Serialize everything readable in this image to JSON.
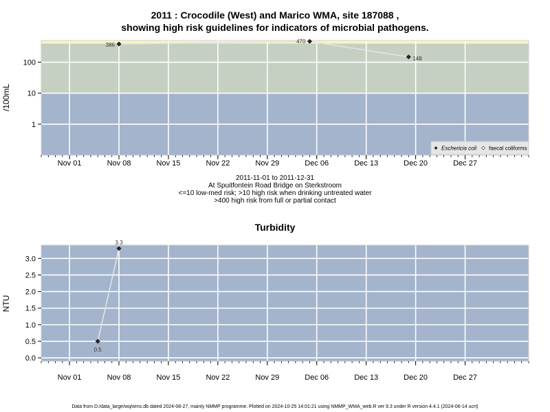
{
  "chart_data": [
    {
      "type": "scatter",
      "title_line1": "2011 : Crocodile (West) and Marico WMA, site 187088 ,",
      "title_line2": "showing high risk guidelines for indicators of microbial pathogens.",
      "ylabel": "/100mL",
      "yscale": "log",
      "ylim": [
        0.1,
        500
      ],
      "yticks": [
        1,
        10,
        100
      ],
      "ytick_labels": [
        "1",
        "10",
        "100"
      ],
      "xlim": [
        "2011-10-28",
        "2012-01-05"
      ],
      "xticks": [
        "2011-11-01",
        "2011-11-08",
        "2011-11-15",
        "2011-11-22",
        "2011-11-29",
        "2011-12-06",
        "2011-12-13",
        "2011-12-20",
        "2011-12-27"
      ],
      "xtick_labels": [
        "Nov 01",
        "Nov 08",
        "Nov 15",
        "Nov 22",
        "Nov 29",
        "Dec 06",
        "Dec 13",
        "Dec 20",
        "Dec 27"
      ],
      "bands": [
        {
          "from": 0.1,
          "to": 10,
          "color": "#a3b4cc"
        },
        {
          "from": 10,
          "to": 400,
          "color": "#c5cfc2"
        },
        {
          "from": 400,
          "to": 500,
          "color": "#f8f6c0"
        }
      ],
      "series": [
        {
          "name": "Eschericia coli",
          "marker": "filled-diamond",
          "points": [
            {
              "x": "2011-11-08",
              "y": 386,
              "label": "386"
            },
            {
              "x": "2011-12-05",
              "y": 470,
              "label": "470"
            },
            {
              "x": "2011-12-19",
              "y": 148,
              "label": "148"
            }
          ]
        },
        {
          "name": "faecal coliforms",
          "marker": "open-diamond",
          "points": []
        }
      ],
      "legend_position": "bottom-right",
      "caption": [
        "2011-11-01 to 2011-12-31",
        "At Spuitfontein Road Bridge on Sterkstroom",
        "<=10 low-med risk; >10 high risk when drinking untreated water",
        ">400 high risk from full or partial contact"
      ]
    },
    {
      "type": "line",
      "title": "Turbidity",
      "ylabel": "NTU",
      "ylim": [
        -0.1,
        3.4
      ],
      "yticks": [
        0,
        0.5,
        1,
        1.5,
        2,
        2.5,
        3
      ],
      "ytick_labels": [
        "0.0",
        "0.5",
        "1.0",
        "1.5",
        "2.0",
        "2.5",
        "3.0"
      ],
      "xlim": [
        "2011-10-28",
        "2012-01-05"
      ],
      "xticks": [
        "2011-11-01",
        "2011-11-08",
        "2011-11-15",
        "2011-11-22",
        "2011-11-29",
        "2011-12-06",
        "2011-12-13",
        "2011-12-20",
        "2011-12-27"
      ],
      "xtick_labels": [
        "Nov 01",
        "Nov 08",
        "Nov 15",
        "Nov 22",
        "Nov 29",
        "Dec 06",
        "Dec 13",
        "Dec 20",
        "Dec 27"
      ],
      "background": "#a3b4cc",
      "series": [
        {
          "points": [
            {
              "x": "2011-11-05",
              "y": 0.5,
              "label": "0.5"
            },
            {
              "x": "2011-11-08",
              "y": 3.3,
              "label": "3.3"
            }
          ]
        }
      ]
    }
  ],
  "footer": "Data from D:/data_large/wq/wms.db dated 2024-08-27, mainly NMMP programme. Plotted on 2024-10-25 14:01:21 using NMMP_WMA_web.R ver 9.3 under R version 4.4.1 (2024-06-14 ucrt)"
}
